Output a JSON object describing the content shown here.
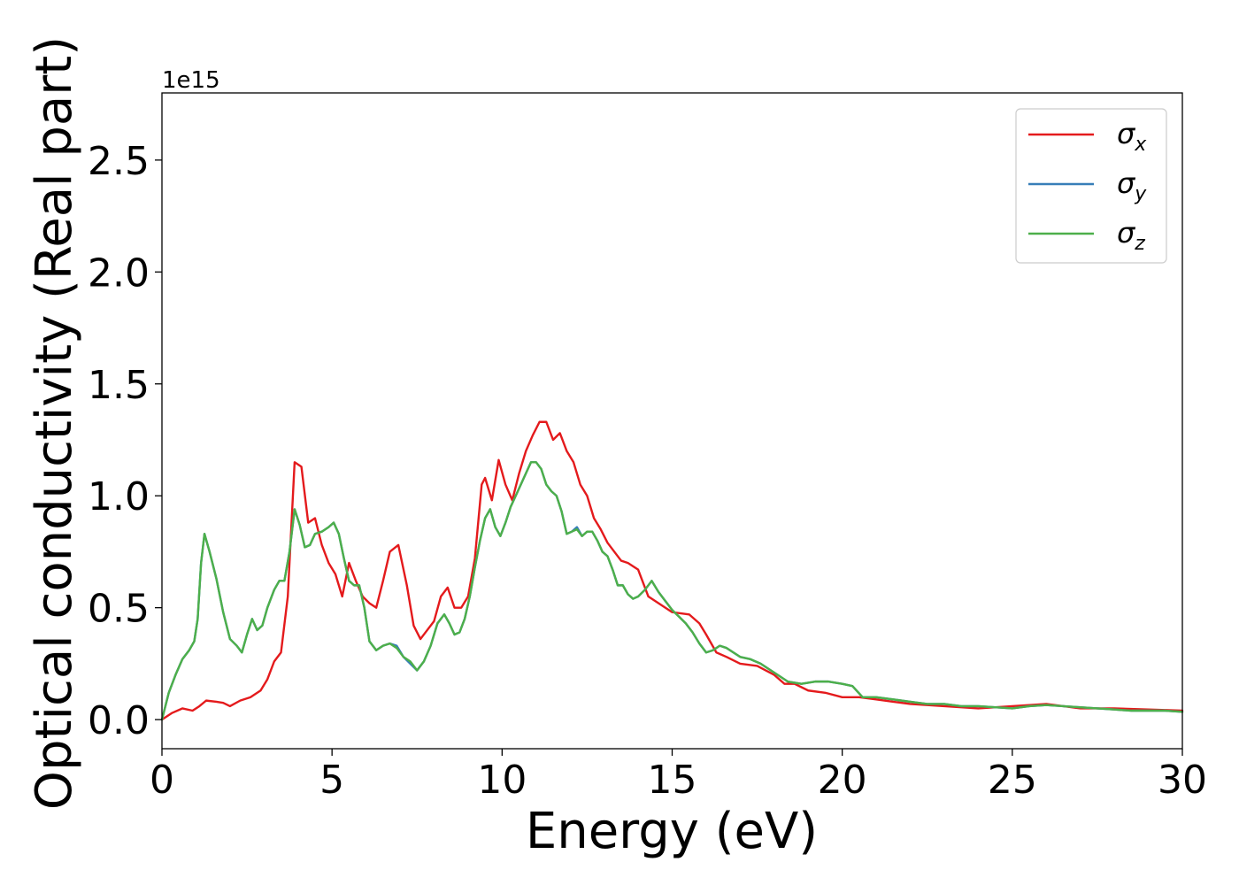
{
  "chart_data": {
    "type": "line",
    "title": "",
    "xlabel": "Energy (eV)",
    "ylabel": "Optical conductivity (Real part)",
    "y_multiplier": "1e15",
    "xlim": [
      0,
      30
    ],
    "ylim": [
      -0.13,
      2.8
    ],
    "xticks": [
      0,
      5,
      10,
      15,
      20,
      25,
      30
    ],
    "xtick_labels": [
      "0",
      "5",
      "10",
      "15",
      "20",
      "25",
      "30"
    ],
    "yticks": [
      0.0,
      0.5,
      1.0,
      1.5,
      2.0,
      2.5
    ],
    "ytick_labels": [
      "0.0",
      "0.5",
      "1.0",
      "1.5",
      "2.0",
      "2.5"
    ],
    "grid": false,
    "legend_position": "top-right",
    "series": [
      {
        "name": "σx",
        "symbol": "σ",
        "subscript": "x",
        "color": "#e41a1c",
        "x": [
          0,
          0.3,
          0.6,
          0.9,
          1.1,
          1.3,
          1.6,
          1.8,
          2.0,
          2.3,
          2.6,
          2.9,
          3.1,
          3.3,
          3.5,
          3.7,
          3.9,
          4.1,
          4.3,
          4.5,
          4.7,
          4.9,
          5.1,
          5.3,
          5.5,
          5.7,
          5.9,
          6.1,
          6.3,
          6.5,
          6.7,
          6.95,
          7.2,
          7.4,
          7.6,
          7.8,
          8.0,
          8.2,
          8.4,
          8.6,
          8.8,
          9.0,
          9.2,
          9.4,
          9.5,
          9.7,
          9.9,
          10.1,
          10.3,
          10.5,
          10.7,
          10.9,
          11.1,
          11.3,
          11.5,
          11.7,
          11.9,
          12.1,
          12.3,
          12.5,
          12.7,
          12.9,
          13.1,
          13.3,
          13.5,
          13.7,
          14.0,
          14.3,
          14.6,
          15.0,
          15.5,
          15.8,
          16.0,
          16.3,
          16.6,
          17.0,
          17.5,
          18.0,
          18.3,
          18.6,
          19.0,
          19.5,
          20.0,
          20.5,
          21.0,
          21.5,
          22.0,
          23.0,
          24.0,
          25.0,
          26.0,
          27.0,
          28.0,
          29.0,
          30.0
        ],
        "y": [
          0.0,
          0.03,
          0.05,
          0.04,
          0.06,
          0.085,
          0.08,
          0.075,
          0.06,
          0.085,
          0.1,
          0.13,
          0.18,
          0.26,
          0.3,
          0.55,
          1.15,
          1.13,
          0.88,
          0.9,
          0.78,
          0.7,
          0.65,
          0.55,
          0.7,
          0.62,
          0.55,
          0.52,
          0.5,
          0.62,
          0.75,
          0.78,
          0.6,
          0.42,
          0.36,
          0.4,
          0.44,
          0.55,
          0.59,
          0.5,
          0.5,
          0.55,
          0.72,
          1.05,
          1.08,
          0.98,
          1.16,
          1.05,
          0.98,
          1.1,
          1.2,
          1.27,
          1.33,
          1.33,
          1.25,
          1.28,
          1.2,
          1.15,
          1.05,
          1.0,
          0.9,
          0.85,
          0.79,
          0.75,
          0.71,
          0.7,
          0.67,
          0.55,
          0.52,
          0.48,
          0.47,
          0.43,
          0.38,
          0.3,
          0.28,
          0.25,
          0.24,
          0.2,
          0.16,
          0.16,
          0.13,
          0.12,
          0.1,
          0.1,
          0.09,
          0.08,
          0.07,
          0.06,
          0.05,
          0.06,
          0.07,
          0.05,
          0.05,
          0.045,
          0.04
        ]
      },
      {
        "name": "σy",
        "symbol": "σ",
        "subscript": "y",
        "color": "#377eb8",
        "x": [
          0,
          0.2,
          0.4,
          0.6,
          0.8,
          0.95,
          1.05,
          1.15,
          1.25,
          1.4,
          1.6,
          1.8,
          2.0,
          2.2,
          2.35,
          2.5,
          2.65,
          2.8,
          2.95,
          3.1,
          3.3,
          3.45,
          3.6,
          3.75,
          3.9,
          4.05,
          4.2,
          4.35,
          4.5,
          4.7,
          4.9,
          5.05,
          5.2,
          5.35,
          5.5,
          5.65,
          5.8,
          5.95,
          6.1,
          6.3,
          6.5,
          6.7,
          6.9,
          7.1,
          7.3,
          7.5,
          7.7,
          7.9,
          8.1,
          8.3,
          8.45,
          8.6,
          8.75,
          8.9,
          9.05,
          9.2,
          9.35,
          9.5,
          9.65,
          9.8,
          9.95,
          10.1,
          10.25,
          10.4,
          10.55,
          10.7,
          10.85,
          11.0,
          11.15,
          11.3,
          11.45,
          11.6,
          11.75,
          11.9,
          12.05,
          12.2,
          12.35,
          12.5,
          12.65,
          12.8,
          12.95,
          13.1,
          13.25,
          13.4,
          13.55,
          13.7,
          13.85,
          14.0,
          14.2,
          14.4,
          14.6,
          14.8,
          15.0,
          15.2,
          15.4,
          15.6,
          15.8,
          16.0,
          16.2,
          16.4,
          16.6,
          16.8,
          17.0,
          17.3,
          17.6,
          18.0,
          18.4,
          18.8,
          19.2,
          19.6,
          20.0,
          20.3,
          20.6,
          21.0,
          21.5,
          22.0,
          22.5,
          23.0,
          23.5,
          24.0,
          24.5,
          25.0,
          25.5,
          26.0,
          26.5,
          27.0,
          27.5,
          28.0,
          28.5,
          29.0,
          29.5,
          30.0
        ],
        "y": [
          0.0,
          0.12,
          0.2,
          0.27,
          0.31,
          0.35,
          0.45,
          0.7,
          0.83,
          0.75,
          0.63,
          0.48,
          0.36,
          0.33,
          0.3,
          0.38,
          0.45,
          0.4,
          0.42,
          0.5,
          0.58,
          0.62,
          0.62,
          0.75,
          0.94,
          0.87,
          0.77,
          0.78,
          0.83,
          0.84,
          0.86,
          0.88,
          0.83,
          0.72,
          0.62,
          0.6,
          0.6,
          0.5,
          0.35,
          0.31,
          0.33,
          0.34,
          0.33,
          0.28,
          0.25,
          0.22,
          0.26,
          0.33,
          0.43,
          0.47,
          0.43,
          0.38,
          0.39,
          0.45,
          0.55,
          0.68,
          0.8,
          0.9,
          0.94,
          0.86,
          0.82,
          0.88,
          0.95,
          1.0,
          1.05,
          1.1,
          1.15,
          1.15,
          1.12,
          1.05,
          1.02,
          1.0,
          0.93,
          0.83,
          0.84,
          0.86,
          0.82,
          0.84,
          0.84,
          0.8,
          0.75,
          0.73,
          0.67,
          0.6,
          0.6,
          0.56,
          0.54,
          0.55,
          0.58,
          0.62,
          0.57,
          0.53,
          0.49,
          0.46,
          0.43,
          0.39,
          0.34,
          0.3,
          0.31,
          0.33,
          0.32,
          0.3,
          0.28,
          0.27,
          0.25,
          0.21,
          0.17,
          0.16,
          0.17,
          0.17,
          0.16,
          0.15,
          0.1,
          0.1,
          0.09,
          0.08,
          0.07,
          0.07,
          0.06,
          0.06,
          0.055,
          0.05,
          0.06,
          0.065,
          0.06,
          0.055,
          0.05,
          0.045,
          0.04,
          0.04,
          0.04,
          0.035
        ]
      },
      {
        "name": "σz",
        "symbol": "σ",
        "subscript": "z",
        "color": "#4daf4a",
        "x": [
          0,
          0.2,
          0.4,
          0.6,
          0.8,
          0.95,
          1.05,
          1.15,
          1.25,
          1.4,
          1.6,
          1.8,
          2.0,
          2.2,
          2.35,
          2.5,
          2.65,
          2.8,
          2.95,
          3.1,
          3.3,
          3.45,
          3.6,
          3.75,
          3.9,
          4.05,
          4.2,
          4.35,
          4.5,
          4.7,
          4.9,
          5.05,
          5.2,
          5.35,
          5.5,
          5.65,
          5.8,
          5.95,
          6.1,
          6.3,
          6.5,
          6.7,
          6.9,
          7.1,
          7.3,
          7.5,
          7.7,
          7.9,
          8.1,
          8.3,
          8.45,
          8.6,
          8.75,
          8.9,
          9.05,
          9.2,
          9.35,
          9.5,
          9.65,
          9.8,
          9.95,
          10.1,
          10.25,
          10.4,
          10.55,
          10.7,
          10.85,
          11.0,
          11.15,
          11.3,
          11.45,
          11.6,
          11.75,
          11.9,
          12.05,
          12.2,
          12.35,
          12.5,
          12.65,
          12.8,
          12.95,
          13.1,
          13.25,
          13.4,
          13.55,
          13.7,
          13.85,
          14.0,
          14.2,
          14.4,
          14.6,
          14.8,
          15.0,
          15.2,
          15.4,
          15.6,
          15.8,
          16.0,
          16.2,
          16.4,
          16.6,
          16.8,
          17.0,
          17.3,
          17.6,
          18.0,
          18.4,
          18.8,
          19.2,
          19.6,
          20.0,
          20.3,
          20.6,
          21.0,
          21.5,
          22.0,
          22.5,
          23.0,
          23.5,
          24.0,
          24.5,
          25.0,
          25.5,
          26.0,
          26.5,
          27.0,
          27.5,
          28.0,
          28.5,
          29.0,
          29.5,
          30.0
        ],
        "y": [
          0.0,
          0.12,
          0.2,
          0.27,
          0.31,
          0.35,
          0.45,
          0.7,
          0.83,
          0.75,
          0.63,
          0.48,
          0.36,
          0.33,
          0.3,
          0.38,
          0.45,
          0.4,
          0.42,
          0.5,
          0.58,
          0.62,
          0.62,
          0.75,
          0.94,
          0.87,
          0.77,
          0.78,
          0.83,
          0.84,
          0.86,
          0.88,
          0.83,
          0.72,
          0.62,
          0.6,
          0.6,
          0.5,
          0.35,
          0.31,
          0.33,
          0.34,
          0.32,
          0.28,
          0.26,
          0.22,
          0.26,
          0.33,
          0.43,
          0.47,
          0.43,
          0.38,
          0.39,
          0.45,
          0.55,
          0.68,
          0.8,
          0.9,
          0.94,
          0.86,
          0.82,
          0.88,
          0.95,
          1.0,
          1.05,
          1.1,
          1.15,
          1.15,
          1.12,
          1.05,
          1.02,
          1.0,
          0.93,
          0.83,
          0.84,
          0.85,
          0.82,
          0.84,
          0.84,
          0.8,
          0.75,
          0.73,
          0.67,
          0.6,
          0.6,
          0.56,
          0.54,
          0.55,
          0.58,
          0.62,
          0.57,
          0.53,
          0.49,
          0.46,
          0.43,
          0.39,
          0.34,
          0.3,
          0.31,
          0.33,
          0.32,
          0.3,
          0.28,
          0.27,
          0.25,
          0.21,
          0.17,
          0.16,
          0.17,
          0.17,
          0.16,
          0.15,
          0.1,
          0.1,
          0.09,
          0.08,
          0.07,
          0.07,
          0.06,
          0.06,
          0.055,
          0.05,
          0.06,
          0.065,
          0.06,
          0.055,
          0.05,
          0.045,
          0.04,
          0.04,
          0.04,
          0.035
        ]
      }
    ]
  }
}
